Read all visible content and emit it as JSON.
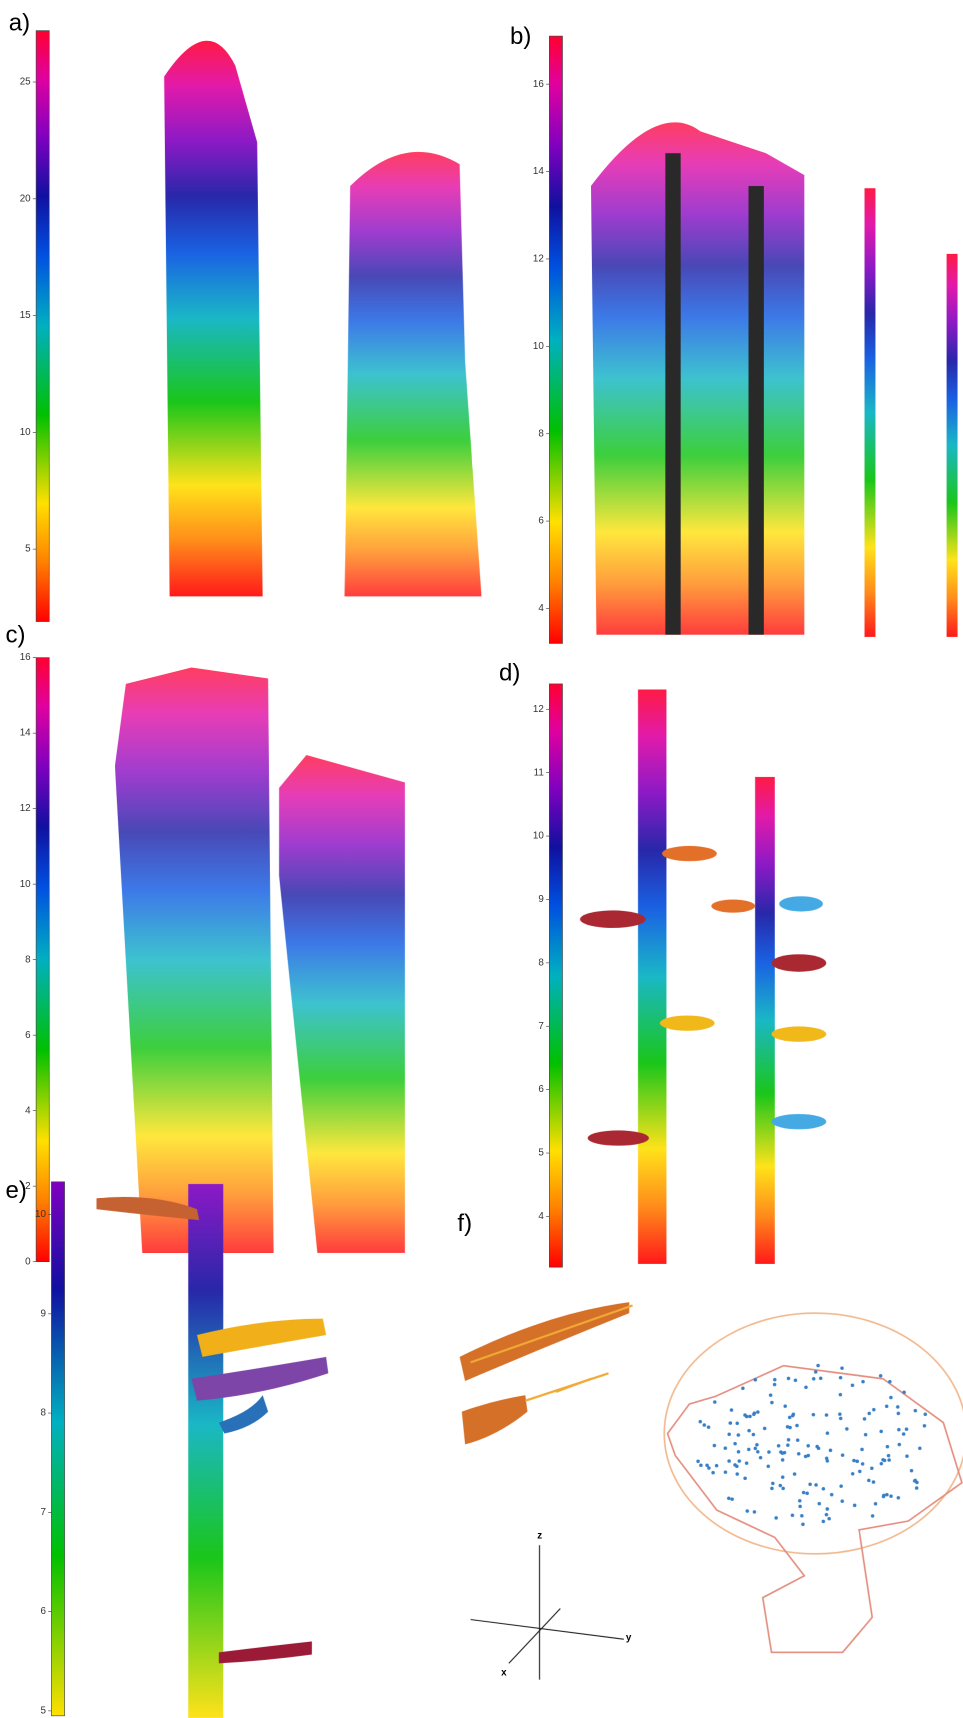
{
  "panels": [
    {
      "label": "a)",
      "colorbar": {
        "ylim": [
          1.9,
          27.2
        ],
        "yticks": [
          5,
          10,
          15,
          20,
          25
        ]
      }
    },
    {
      "label": "b)",
      "colorbar": {
        "ylim": [
          3.2,
          17.1
        ],
        "yticks": [
          4,
          6,
          8,
          10,
          12,
          14,
          16
        ]
      }
    },
    {
      "label": "c)",
      "colorbar": {
        "ylim": [
          0,
          16
        ],
        "yticks": [
          0,
          2,
          4,
          6,
          8,
          10,
          12,
          14,
          16
        ]
      }
    },
    {
      "label": "d)",
      "colorbar": {
        "ylim": [
          3.2,
          12.4
        ],
        "yticks": [
          4,
          5,
          6,
          7,
          8,
          9,
          10,
          11,
          12
        ]
      }
    },
    {
      "label": "e)",
      "colorbar": {
        "ylim": [
          4.95,
          10.33
        ],
        "yticks": [
          5,
          6,
          7,
          8,
          9,
          10
        ]
      }
    },
    {
      "label": "f)"
    }
  ],
  "axes": {
    "z": "z",
    "y": "y",
    "x": "x"
  }
}
